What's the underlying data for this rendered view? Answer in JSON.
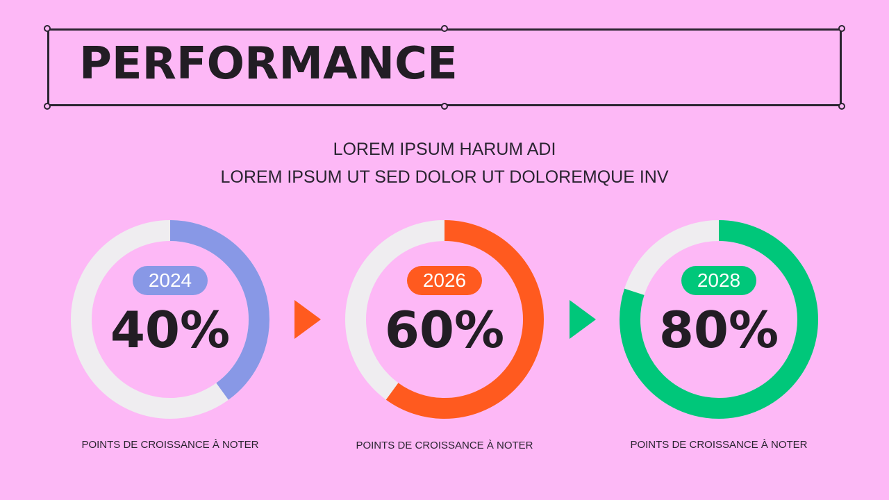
{
  "header": {
    "title": "PERFORMANCE"
  },
  "subtitle": {
    "line1": "LOREM IPSUM HARUM ADI",
    "line2": "LOREM IPSUM UT SED DOLOR UT DOLOREMQUE INV"
  },
  "colors": {
    "background": "#fdb8f6",
    "track": "#efedf0",
    "series_2024": "#8898e6",
    "series_2026": "#ff5a1f",
    "series_2028": "#00c77a"
  },
  "chart_data": {
    "type": "donut",
    "items": [
      {
        "year": "2024",
        "value": 40,
        "label": "40%",
        "caption": "POINTS DE CROISSANCE À NOTER",
        "color": "#8898e6"
      },
      {
        "year": "2026",
        "value": 60,
        "label": "60%",
        "caption": "POINTS DE CROISSANCE À NOTER",
        "color": "#ff5a1f"
      },
      {
        "year": "2028",
        "value": 80,
        "label": "80%",
        "caption": "POINTS DE CROISSANCE À NOTER",
        "color": "#00c77a"
      }
    ]
  },
  "connectors": [
    {
      "icon": "play-arrow-icon",
      "color": "#ff5a1f"
    },
    {
      "icon": "play-arrow-icon",
      "color": "#00c77a"
    }
  ]
}
